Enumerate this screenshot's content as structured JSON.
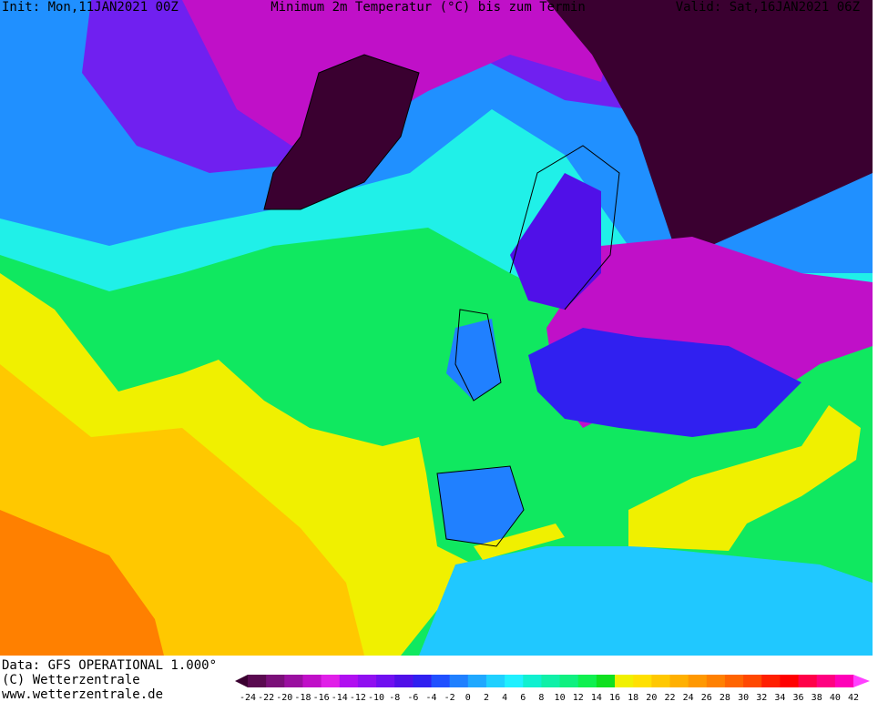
{
  "header": {
    "init": "Init: Mon,11JAN2021 00Z",
    "title": "Minimum 2m Temperatur (°C) bis zum Termin",
    "valid": "Valid: Sat,16JAN2021 06Z"
  },
  "footer": {
    "data": "Data: GFS OPERATIONAL 1.000°",
    "copyright": "(C) Wetterzentrale",
    "url": "www.wetterzentrale.de"
  },
  "legend": {
    "labels": [
      -24,
      -22,
      -20,
      -18,
      -16,
      -14,
      -12,
      -10,
      -8,
      -6,
      -4,
      -2,
      0,
      2,
      4,
      6,
      8,
      10,
      12,
      14,
      16,
      18,
      20,
      22,
      24,
      26,
      28,
      30,
      32,
      34,
      36,
      38,
      40,
      42
    ],
    "colors": [
      "#3a0030",
      "#5a0a50",
      "#7a1078",
      "#9a10a0",
      "#c010c8",
      "#e020e8",
      "#b010f0",
      "#9010f0",
      "#7010f0",
      "#5010e8",
      "#3020f0",
      "#2050ff",
      "#2080ff",
      "#20a8ff",
      "#20d0ff",
      "#20f0ff",
      "#10f0d0",
      "#10f0a8",
      "#10f080",
      "#10f050",
      "#10e020",
      "#f0f000",
      "#ffe000",
      "#ffc800",
      "#ffb000",
      "#ff9800",
      "#ff8000",
      "#ff6400",
      "#ff4800",
      "#ff2000",
      "#ff0000",
      "#ff0048",
      "#ff0080",
      "#ff00b8",
      "#ff40ff"
    ]
  }
}
